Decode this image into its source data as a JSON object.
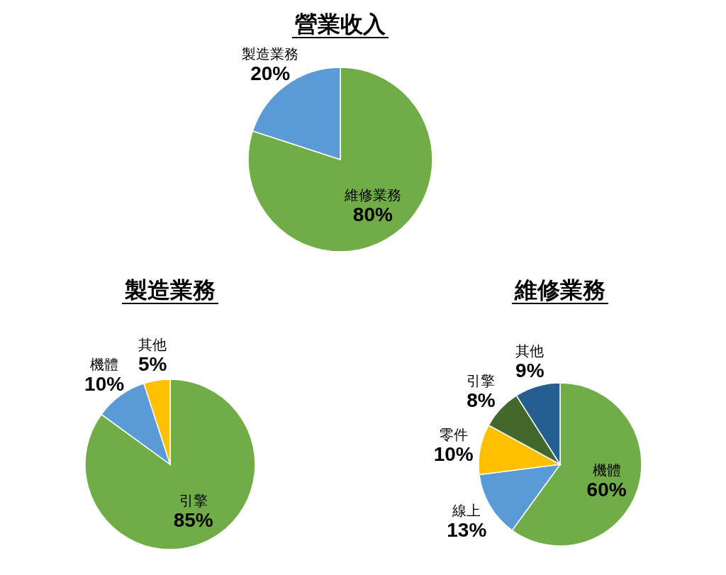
{
  "chart_data": [
    {
      "type": "pie",
      "title": "營業收入",
      "categories": [
        "維修業務",
        "製造業務"
      ],
      "values": [
        80,
        20
      ],
      "value_labels": [
        "80%",
        "20%"
      ],
      "colors": [
        "#70ad47",
        "#5b9bd5"
      ]
    },
    {
      "type": "pie",
      "title": "製造業務",
      "categories": [
        "引擎",
        "機體",
        "其他"
      ],
      "values": [
        85,
        10,
        5
      ],
      "value_labels": [
        "85%",
        "10%",
        "5%"
      ],
      "colors": [
        "#70ad47",
        "#5b9bd5",
        "#ffc000"
      ]
    },
    {
      "type": "pie",
      "title": "維修業務",
      "categories": [
        "機體",
        "線上",
        "零件",
        "引擎",
        "其他"
      ],
      "values": [
        60,
        13,
        10,
        8,
        9
      ],
      "value_labels": [
        "60%",
        "13%",
        "10%",
        "8%",
        "9%"
      ],
      "colors": [
        "#70ad47",
        "#5b9bd5",
        "#ffc000",
        "#43682b",
        "#255e91"
      ]
    }
  ]
}
